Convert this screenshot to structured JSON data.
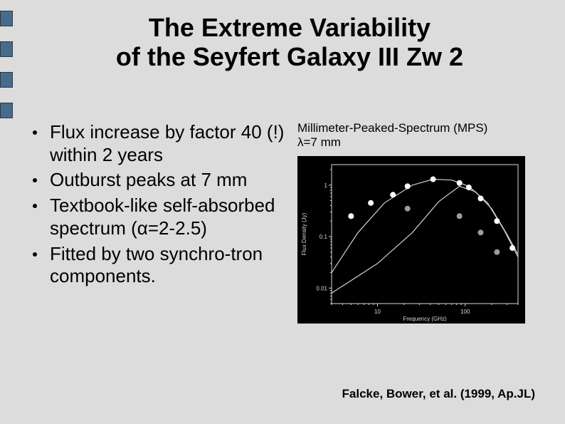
{
  "title_line1": "The Extreme Variability",
  "title_line2": "of the Seyfert Galaxy III Zw 2",
  "bullets": [
    "Flux increase by factor 40 (!) within 2 years",
    "Outburst peaks at 7 mm",
    "Textbook-like self-absorbed spectrum (α=2-2.5)",
    "Fitted by two synchro-tron components."
  ],
  "caption_line1": "Millimeter-Peaked-Spectrum (MPS)",
  "caption_line2": "λ=7 mm",
  "citation": "Falcke, Bower, et al. (1999, Ap.JL)",
  "side_marks_y": [
    15,
    58,
    101,
    144
  ],
  "chart": {
    "type": "scatter",
    "background_color": "#000000",
    "axis_color": "#d9d9d9",
    "grid_color": "#333333",
    "point_colors": {
      "white": "#ffffff",
      "gray": "#9c9c9c"
    },
    "line_color": "#cfcfcf",
    "xlabel": "Frequency (GHz)",
    "ylabel": "Flux Density (Jy)",
    "label_fontsize": 8,
    "xscale": "log",
    "yscale": "log",
    "xlim": [
      3,
      400
    ],
    "ylim": [
      0.005,
      2.5
    ],
    "xticks": [
      10,
      100
    ],
    "yticks": [
      0.01,
      0.1,
      1
    ],
    "ytick_labels": [
      "0.01",
      "0.1",
      "1"
    ],
    "points_white": [
      [
        5,
        0.25
      ],
      [
        8.4,
        0.45
      ],
      [
        15,
        0.65
      ],
      [
        22,
        0.95
      ],
      [
        43,
        1.3
      ],
      [
        86,
        1.1
      ],
      [
        110,
        0.9
      ],
      [
        150,
        0.55
      ],
      [
        230,
        0.2
      ],
      [
        345,
        0.06
      ]
    ],
    "points_gray": [
      [
        22,
        0.35
      ],
      [
        86,
        0.25
      ],
      [
        150,
        0.12
      ],
      [
        230,
        0.05
      ]
    ],
    "curve1": [
      [
        3,
        0.02
      ],
      [
        6,
        0.12
      ],
      [
        12,
        0.45
      ],
      [
        25,
        1.0
      ],
      [
        43,
        1.3
      ],
      [
        70,
        1.25
      ],
      [
        110,
        0.95
      ],
      [
        180,
        0.45
      ],
      [
        280,
        0.13
      ],
      [
        400,
        0.04
      ]
    ],
    "curve2": [
      [
        3,
        0.008
      ],
      [
        10,
        0.03
      ],
      [
        25,
        0.12
      ],
      [
        50,
        0.48
      ],
      [
        86,
        0.95
      ],
      [
        130,
        0.75
      ],
      [
        200,
        0.35
      ],
      [
        300,
        0.11
      ],
      [
        400,
        0.045
      ]
    ],
    "marker_radius": 4,
    "line_width": 1.2
  }
}
